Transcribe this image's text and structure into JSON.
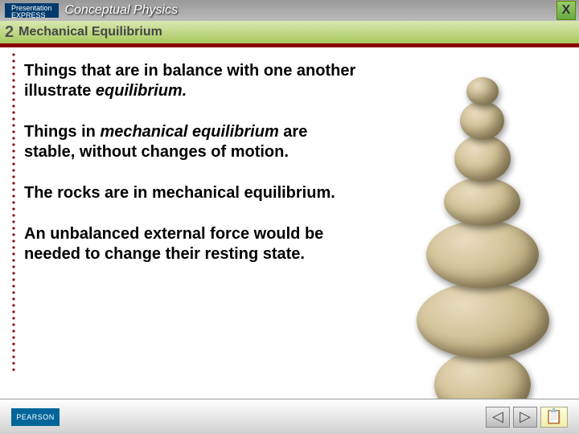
{
  "brand": {
    "express_top": "Presentation",
    "express_bottom": "EXPRESS",
    "title": "Conceptual Physics"
  },
  "close": {
    "label": "X"
  },
  "header": {
    "chapter_num": "2",
    "chapter_title": "Mechanical Equilibrium"
  },
  "content": {
    "p1_a": "Things that are in balance with one another illustrate ",
    "p1_em": "equilibrium.",
    "p2_a": "Things in ",
    "p2_em": "mechanical equilibrium",
    "p2_b": " are stable, without changes of motion.",
    "p3": "The rocks are in mechanical equilibrium.",
    "p4": "An unbalanced external force would be needed to change their resting state."
  },
  "footer": {
    "pearson": "PEARSON",
    "prev": "◁",
    "next": "▷"
  },
  "colors": {
    "accent": "#8b0000",
    "header_grad": "#c0d888",
    "topbar": "#aaaaaa"
  }
}
